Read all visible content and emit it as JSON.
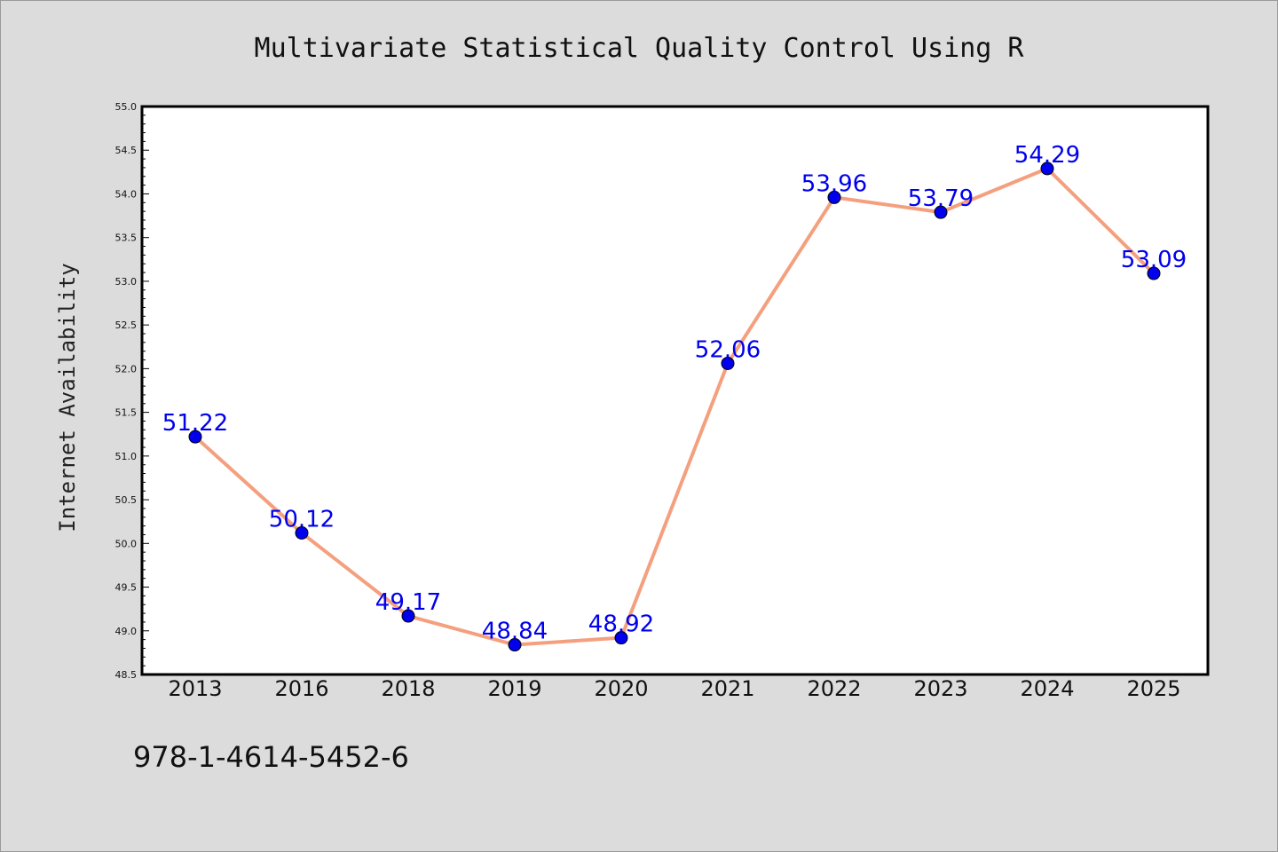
{
  "chart_data": {
    "type": "line",
    "title": "Multivariate Statistical Quality Control Using R",
    "xlabel": "",
    "ylabel": "Internet Availability",
    "categories": [
      "2013",
      "2016",
      "2018",
      "2019",
      "2020",
      "2021",
      "2022",
      "2023",
      "2024",
      "2025"
    ],
    "series": [
      {
        "values": [
          51.22,
          50.12,
          49.17,
          48.84,
          48.92,
          52.06,
          53.96,
          53.79,
          54.29,
          53.09
        ],
        "labels": [
          "51.22",
          "50.12",
          "49.17",
          "48.84",
          "48.92",
          "52.06",
          "53.96",
          "53.79",
          "54.29",
          "53.09"
        ]
      }
    ],
    "ylim": [
      48.5,
      55.0
    ],
    "yticks": [
      "48.5",
      "49.0",
      "49.5",
      "50.0",
      "50.5",
      "51.0",
      "51.5",
      "52.0",
      "52.5",
      "53.0",
      "53.5",
      "54.0",
      "54.5",
      "55.0"
    ],
    "grid": false,
    "legend": "none",
    "colors": {
      "line": "#f4a07e",
      "marker": "#0000ee",
      "label": "#0000ee",
      "plot_background": "#ffffff",
      "page_background": "#dcdcdc"
    }
  },
  "footer": {
    "isbn": "978-1-4614-5452-6"
  }
}
